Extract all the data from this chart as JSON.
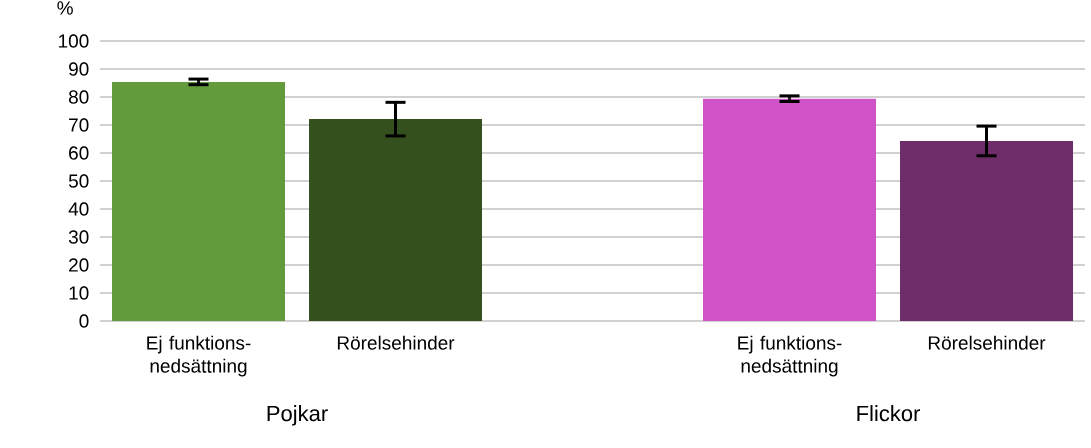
{
  "chart_data": {
    "type": "bar",
    "ylabel": "%",
    "categories": [
      "Ej funktions-nedsättning",
      "Rörelsehinder",
      null,
      "Ej funktions-nedsättning",
      "Rörelsehinder"
    ],
    "values": [
      85.4,
      72.1,
      null,
      79.4,
      64.3
    ],
    "errors": [
      1,
      6,
      null,
      1,
      5.3
    ],
    "colors": [
      "#629a3c",
      "#35501f",
      null,
      "#d053c8",
      "#6e2c69"
    ],
    "ylim": [
      0,
      100
    ],
    "yticks": [
      0,
      10,
      20,
      30,
      40,
      50,
      60,
      70,
      80,
      90,
      100
    ],
    "grid": "y",
    "annotations": [
      "Pojkar",
      "Flickor"
    ]
  }
}
